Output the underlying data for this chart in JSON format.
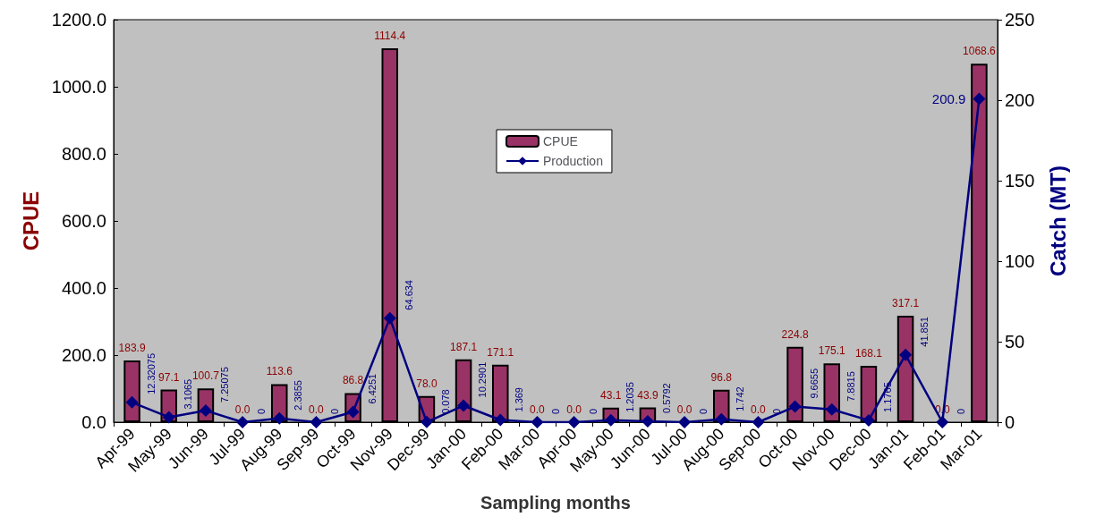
{
  "chart_data": {
    "type": "bar",
    "xlabel": "Sampling months",
    "ylabel": "CPUE",
    "y2label": "Catch (MT)",
    "categories": [
      "Apr-99",
      "May-99",
      "Jun-99",
      "Jul-99",
      "Aug-99",
      "Sep-99",
      "Oct-99",
      "Nov-99",
      "Dec-99",
      "Jan-00",
      "Feb-00",
      "Mar-00",
      "Apr-00",
      "May-00",
      "Jun-00",
      "Jul-00",
      "Aug-00",
      "Sep-00",
      "Oct-00",
      "Nov-00",
      "Dec-00",
      "Jan-01",
      "Feb-01",
      "Mar-01"
    ],
    "series": [
      {
        "name": "CPUE",
        "color": "#993366",
        "values": [
          183.9,
          97.1,
          100.7,
          0.0,
          113.6,
          0.0,
          86.8,
          1114.4,
          78.0,
          187.1,
          171.1,
          0.0,
          0.0,
          43.1,
          43.9,
          0.0,
          96.8,
          0.0,
          224.8,
          175.1,
          168.1,
          317.1,
          0.0,
          1068.6
        ],
        "value_labels": [
          "183.9",
          "97.1",
          "100.7",
          "0.0",
          "113.6",
          "0.0",
          "86.8",
          "1114.4",
          "78.0",
          "187.1",
          "171.1",
          "0.0",
          "0.0",
          "43.1",
          "43.9",
          "0.0",
          "96.8",
          "0.0",
          "224.8",
          "175.1",
          "168.1",
          "317.1",
          "0.0",
          "1068.6"
        ]
      },
      {
        "name": "Production",
        "type": "line",
        "axis": "y2",
        "color": "#000080",
        "marker": "diamond",
        "values": [
          12.32075,
          3.1065,
          7.25075,
          0,
          2.3855,
          0,
          6.4251,
          64.634,
          0.078,
          10.2901,
          1.369,
          0,
          0,
          1.2035,
          0.5792,
          0,
          1.742,
          0,
          9.6655,
          7.8815,
          1.1765,
          41.851,
          0,
          200.9
        ],
        "value_labels": [
          "12.32075",
          "3.1065",
          "7.25075",
          "0",
          "2.3855",
          "0",
          "6.4251",
          "64.634",
          "0.078",
          "10.2901",
          "1.369",
          "0",
          "0",
          "1.2035",
          "0.5792",
          "0",
          "1.742",
          "0",
          "9.6655",
          "7.8815",
          "1.1765",
          "41.851",
          "0",
          "200.9"
        ]
      }
    ],
    "ylim": [
      0,
      1200
    ],
    "yticks": [
      {
        "value": 0,
        "label": "0.0"
      },
      {
        "value": 200,
        "label": "200.0"
      },
      {
        "value": 400,
        "label": "400.0"
      },
      {
        "value": 600,
        "label": "600.0"
      },
      {
        "value": 800,
        "label": "800.0"
      },
      {
        "value": 1000,
        "label": "1000.0"
      },
      {
        "value": 1200,
        "label": "1200.0"
      }
    ],
    "y2lim": [
      0,
      250
    ],
    "y2ticks": [
      0,
      50,
      100,
      150,
      200,
      250
    ],
    "legend": "top",
    "grid": false
  }
}
